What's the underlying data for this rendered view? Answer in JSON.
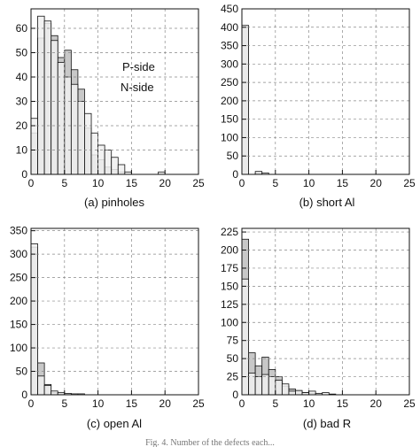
{
  "figure_caption": "Fig. 4. Number of the defects each...",
  "colors": {
    "p_side_fill": "#c8c8c8",
    "n_side_fill": "#f0f0f0",
    "grid": "#888888",
    "ink": "#111111"
  },
  "chart_data": [
    {
      "type": "histogram",
      "caption": "(a) pinholes",
      "xlim": [
        0,
        25
      ],
      "xticks": [
        0,
        5,
        10,
        15,
        20,
        25
      ],
      "ylim": [
        0,
        68
      ],
      "yticks": [
        0,
        10,
        20,
        30,
        40,
        50,
        60
      ],
      "bin_width": 1,
      "grid": true,
      "legend_placement": "right",
      "series": [
        {
          "name": "P-side",
          "fill": "p_side_fill",
          "values": [
            17,
            56,
            62,
            57,
            48,
            51,
            43,
            35,
            19,
            8,
            6,
            3,
            2,
            1,
            0,
            0,
            0,
            0,
            0,
            0,
            0,
            0,
            0,
            0,
            0
          ]
        },
        {
          "name": "N-side",
          "fill": "n_side_fill",
          "values": [
            23,
            65,
            63,
            55,
            46,
            40,
            37,
            30,
            25,
            17,
            12,
            10,
            7,
            4,
            1,
            0,
            0,
            0,
            0,
            1,
            0,
            0,
            0,
            0,
            0
          ]
        }
      ]
    },
    {
      "type": "histogram",
      "caption": "(b) short Al",
      "xlim": [
        0,
        25
      ],
      "xticks": [
        0,
        5,
        10,
        15,
        20,
        25
      ],
      "ylim": [
        0,
        450
      ],
      "yticks": [
        0,
        50,
        100,
        150,
        200,
        250,
        300,
        350,
        400,
        450
      ],
      "bin_width": 1,
      "grid": true,
      "series": [
        {
          "fill": "p_side_fill",
          "values": [
            400,
            0,
            3,
            0,
            0,
            0,
            0,
            0,
            0,
            0,
            0,
            0,
            0,
            0,
            0,
            0,
            0,
            0,
            0,
            0,
            0,
            0,
            0,
            0,
            0
          ]
        },
        {
          "fill": "n_side_fill",
          "values": [
            405,
            0,
            8,
            4,
            0,
            0,
            0,
            0,
            0,
            0,
            0,
            0,
            0,
            0,
            0,
            0,
            0,
            0,
            0,
            0,
            0,
            0,
            0,
            0,
            0
          ]
        }
      ]
    },
    {
      "type": "histogram",
      "caption": "(c) open Al",
      "xlim": [
        0,
        25
      ],
      "xticks": [
        0,
        5,
        10,
        15,
        20,
        25
      ],
      "ylim": [
        0,
        355
      ],
      "yticks": [
        0,
        50,
        100,
        150,
        200,
        250,
        300,
        350
      ],
      "bin_width": 1,
      "grid": true,
      "series": [
        {
          "fill": "p_side_fill",
          "values": [
            315,
            68,
            22,
            5,
            2,
            1,
            0,
            0,
            0,
            0,
            0,
            0,
            0,
            0,
            0,
            0,
            0,
            0,
            0,
            0,
            0,
            0,
            0,
            0,
            0
          ]
        },
        {
          "fill": "n_side_fill",
          "values": [
            322,
            40,
            20,
            8,
            5,
            3,
            2,
            2,
            0,
            0,
            0,
            0,
            0,
            0,
            0,
            0,
            0,
            0,
            0,
            0,
            0,
            0,
            0,
            0,
            0
          ]
        }
      ]
    },
    {
      "type": "histogram",
      "caption": "(d) bad R",
      "xlim": [
        0,
        25
      ],
      "xticks": [
        0,
        5,
        10,
        15,
        20,
        25
      ],
      "ylim": [
        0,
        230
      ],
      "yticks": [
        0,
        25,
        50,
        75,
        100,
        125,
        150,
        175,
        200,
        225
      ],
      "bin_width": 1,
      "grid": true,
      "series": [
        {
          "fill": "p_side_fill",
          "values": [
            215,
            58,
            40,
            52,
            35,
            25,
            12,
            8,
            5,
            3,
            2,
            0,
            0,
            0,
            0,
            0,
            0,
            0,
            0,
            0,
            0,
            0,
            0,
            0,
            0
          ]
        },
        {
          "fill": "n_side_fill",
          "values": [
            160,
            30,
            25,
            28,
            25,
            20,
            15,
            5,
            6,
            3,
            5,
            2,
            3,
            1,
            0,
            0,
            0,
            0,
            0,
            0,
            0,
            0,
            0,
            0,
            0
          ]
        }
      ]
    }
  ]
}
